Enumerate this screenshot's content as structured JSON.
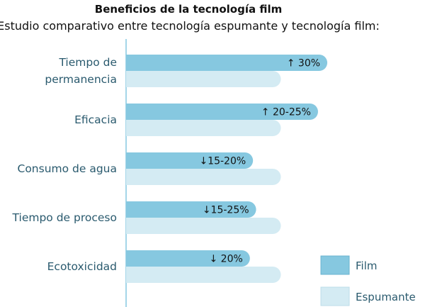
{
  "chart_data": {
    "type": "bar",
    "orientation": "horizontal",
    "title": "Beneficios de la tecnología film",
    "subtitle": "Estudio comparativo entre tecnología espumante y tecnología film:",
    "categories": [
      [
        "Tiempo de",
        "permanencia"
      ],
      [
        "Eficacia"
      ],
      [
        "Consumo de agua"
      ],
      [
        "Tiempo de proceso"
      ],
      [
        "Ecotoxicidad"
      ]
    ],
    "series": [
      {
        "name": "Film",
        "color": "#86c8e0",
        "values": [
          130,
          124,
          82,
          84,
          80
        ],
        "labels": [
          "↑ 30%",
          "↑  20-25%",
          "↓15-20%",
          "↓15-25%",
          "↓ 20%"
        ]
      },
      {
        "name": "Espumante",
        "color": "#d4ebf3",
        "values": [
          100,
          100,
          100,
          100,
          100
        ]
      }
    ],
    "xlim": [
      0,
      135
    ],
    "legend_position": "bottom-right",
    "grid": false,
    "axis_color": "#86c8e0"
  }
}
